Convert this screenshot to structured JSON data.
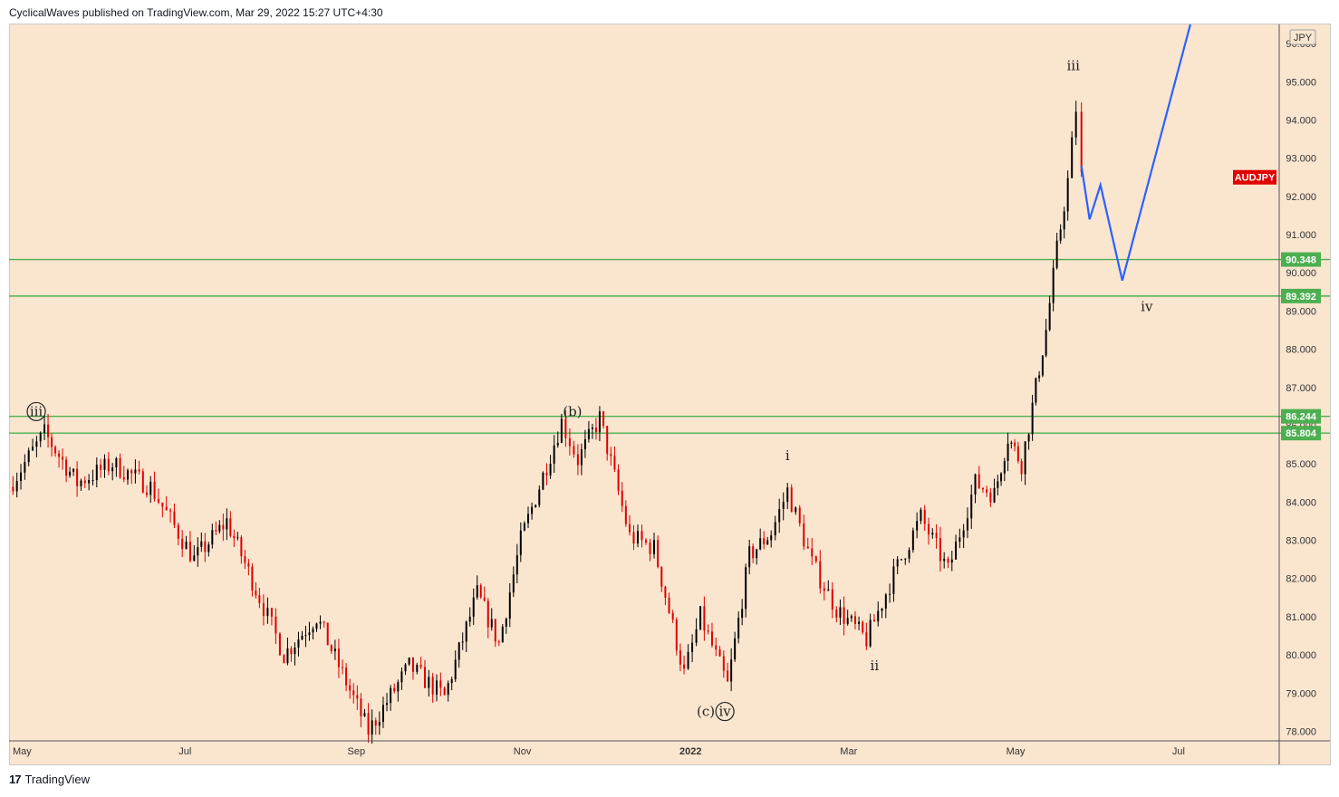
{
  "header": {
    "publish_line": "CyclicalWaves published on TradingView.com, Mar 29, 2022 15:27 UTC+4:30"
  },
  "footer": {
    "brand_logo": "17",
    "brand_name": "TradingView"
  },
  "chart_data": {
    "type": "candlestick",
    "symbol": "AUDJPY",
    "currency": "JPY",
    "x_range": [
      "2021-05-01",
      "2022-08-10"
    ],
    "ylim": [
      77.75,
      96.5
    ],
    "y_ticks": [
      "96.000",
      "95.000",
      "94.000",
      "93.000",
      "92.000",
      "91.000",
      "90.000",
      "89.000",
      "88.000",
      "87.000",
      "86.000",
      "85.000",
      "84.000",
      "83.000",
      "82.000",
      "81.000",
      "80.000",
      "79.000",
      "78.000"
    ],
    "x_ticks": [
      {
        "label": "May",
        "date": "2021-05-01",
        "bold": false
      },
      {
        "label": "Jul",
        "date": "2021-07-01",
        "bold": false
      },
      {
        "label": "Sep",
        "date": "2021-09-01",
        "bold": false
      },
      {
        "label": "Nov",
        "date": "2021-11-01",
        "bold": false
      },
      {
        "label": "2022",
        "date": "2022-01-01",
        "bold": true
      },
      {
        "label": "Mar",
        "date": "2022-03-01",
        "bold": false
      },
      {
        "label": "May",
        "date": "2022-05-01",
        "bold": false
      },
      {
        "label": "Jul",
        "date": "2022-07-01",
        "bold": false
      }
    ],
    "price_path": [
      [
        "2021-05-01",
        84.4
      ],
      [
        "2021-05-14",
        85.8
      ],
      [
        "2021-05-26",
        84.5
      ],
      [
        "2021-06-08",
        85.0
      ],
      [
        "2021-06-22",
        84.4
      ],
      [
        "2021-07-08",
        82.5
      ],
      [
        "2021-07-20",
        83.5
      ],
      [
        "2021-08-01",
        81.5
      ],
      [
        "2021-08-10",
        80.0
      ],
      [
        "2021-08-22",
        81.0
      ],
      [
        "2021-09-10",
        78.0
      ],
      [
        "2021-09-25",
        79.7
      ],
      [
        "2021-10-08",
        78.9
      ],
      [
        "2021-10-20",
        81.6
      ],
      [
        "2021-10-28",
        80.3
      ],
      [
        "2021-11-05",
        83.0
      ],
      [
        "2021-11-20",
        86.1
      ],
      [
        "2021-11-26",
        85.1
      ],
      [
        "2021-12-04",
        86.2
      ],
      [
        "2021-12-15",
        83.1
      ],
      [
        "2021-12-24",
        82.8
      ],
      [
        "2022-01-04",
        79.5
      ],
      [
        "2022-01-10",
        81.0
      ],
      [
        "2022-01-20",
        79.2
      ],
      [
        "2022-01-28",
        82.6
      ],
      [
        "2022-02-05",
        83.2
      ],
      [
        "2022-02-11",
        84.3
      ],
      [
        "2022-02-20",
        82.4
      ],
      [
        "2022-03-01",
        81.2
      ],
      [
        "2022-03-12",
        80.4
      ],
      [
        "2022-03-22",
        82.1
      ],
      [
        "2022-04-01",
        83.6
      ],
      [
        "2022-04-11",
        82.2
      ],
      [
        "2022-04-21",
        84.5
      ],
      [
        "2022-04-28",
        84.2
      ],
      [
        "2022-05-03",
        85.7
      ],
      [
        "2022-05-08",
        85.0
      ],
      [
        "2022-05-12",
        86.5
      ],
      [
        "2022-05-17",
        88.5
      ],
      [
        "2022-05-21",
        90.6
      ],
      [
        "2022-05-25",
        92.4
      ],
      [
        "2022-05-28",
        94.3
      ],
      [
        "2022-05-30",
        92.5
      ]
    ],
    "projection": [
      [
        "2022-05-30",
        92.8
      ],
      [
        "2022-06-02",
        91.4
      ],
      [
        "2022-06-06",
        92.3
      ],
      [
        "2022-06-14",
        89.8
      ],
      [
        "2022-07-09",
        96.5
      ]
    ],
    "horizontal_levels": [
      {
        "value": 90.348,
        "label": "90.348"
      },
      {
        "value": 89.392,
        "label": "89.392"
      },
      {
        "value": 86.244,
        "label": "86.244"
      },
      {
        "value": 85.804,
        "label": "85.804"
      }
    ],
    "last_price_tag": {
      "label": "AUDJPY",
      "value": 92.5
    },
    "wave_labels": [
      {
        "text": "iii",
        "date": "2021-05-11",
        "price": 86.25,
        "circled": true
      },
      {
        "text": "(b)",
        "date": "2021-11-24",
        "price": 86.25,
        "circled": false
      },
      {
        "text": "(c)",
        "date": "2022-01-12",
        "price": 78.4,
        "circled": false
      },
      {
        "text": "iv",
        "date": "2022-01-19",
        "price": 78.4,
        "circled": true
      },
      {
        "text": "i",
        "date": "2022-02-11",
        "price": 85.1,
        "circled": false
      },
      {
        "text": "ii",
        "date": "2022-03-15",
        "price": 79.6,
        "circled": false
      },
      {
        "text": "iii",
        "date": "2022-05-27",
        "price": 95.3,
        "circled": false
      },
      {
        "text": "iv",
        "date": "2022-06-23",
        "price": 89.0,
        "circled": false
      }
    ],
    "colors": {
      "background": "#fae5cf",
      "level_line": "#4caf50",
      "level_tag": "#4caf50",
      "projection": "#2962ff",
      "candle_up": "#000000",
      "candle_down": "#e00000",
      "symbol_tag": "#e00000"
    }
  }
}
